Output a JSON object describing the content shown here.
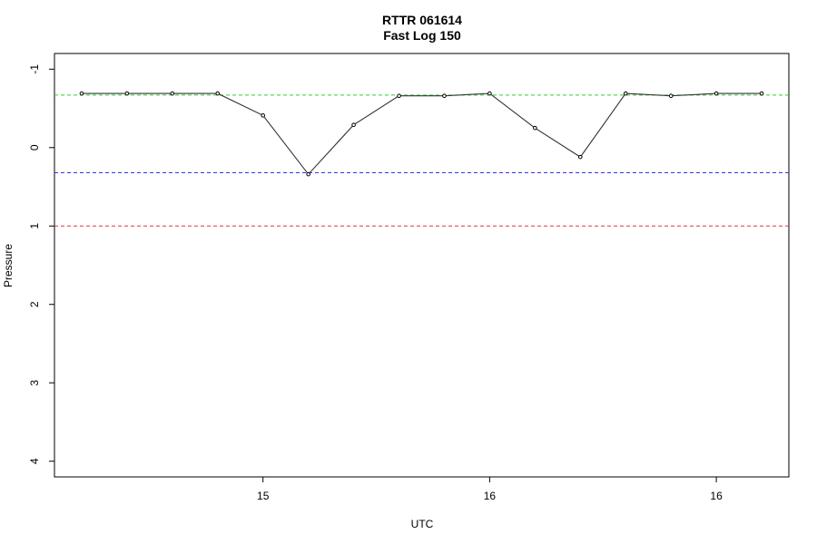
{
  "chart_data": {
    "type": "line",
    "title": "RTTR 061614",
    "subtitle": "Fast Log 150",
    "xlabel": "UTC",
    "ylabel": "Pressure",
    "y_axis_reversed": true,
    "ylim": [
      -1.2,
      4.2
    ],
    "y_ticks": [
      -1,
      0,
      1,
      2,
      3,
      4
    ],
    "y_tick_labels": [
      "-1",
      "0",
      "1",
      "2",
      "3",
      "4"
    ],
    "x_ticks": [
      4,
      9,
      14
    ],
    "x_tick_labels": [
      "15",
      "16",
      "16"
    ],
    "xlim": [
      -0.6,
      15.6
    ],
    "grid": false,
    "legend": "none",
    "series": [
      {
        "color": "#333333",
        "x": [
          0,
          1,
          2,
          3,
          4,
          5,
          6,
          7,
          8,
          9,
          10,
          11,
          12,
          13,
          14,
          15
        ],
        "values": [
          -0.69,
          -0.69,
          -0.69,
          -0.69,
          -0.41,
          0.34,
          -0.29,
          -0.66,
          -0.66,
          -0.69,
          -0.25,
          0.12,
          -0.69,
          -0.66,
          -0.69,
          -0.69
        ]
      }
    ],
    "reference_lines": [
      {
        "y": -0.67,
        "color": "#33cc33",
        "style": "dashed"
      },
      {
        "y": 0.32,
        "color": "#3333ee",
        "style": "dashed"
      },
      {
        "y": 1.0,
        "color": "#dd3344",
        "style": "dashed"
      }
    ]
  }
}
